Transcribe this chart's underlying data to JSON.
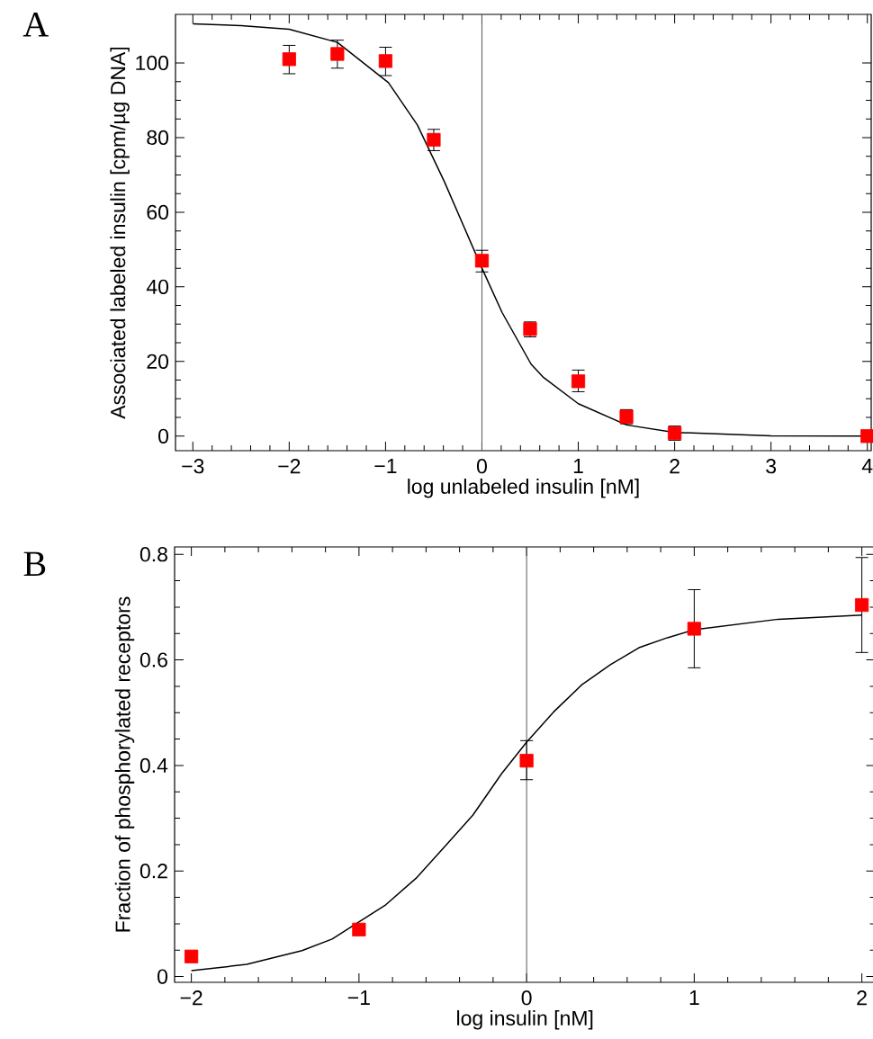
{
  "chart_data": [
    {
      "type": "scatter",
      "annotations": [
        "A"
      ],
      "xlabel": "log unlabeled insulin [nM]",
      "ylabel": "Associated labeled insulin [cpm/µg DNA]",
      "xlim": [
        -3.18,
        4.04
      ],
      "ylim": [
        -3.9,
        113
      ],
      "xticks": [
        {
          "value": -3,
          "label": "−3"
        },
        {
          "value": -2,
          "label": "−2"
        },
        {
          "value": -1,
          "label": "−1"
        },
        0,
        1,
        2,
        3,
        4
      ],
      "yticks": [
        0,
        20,
        40,
        60,
        80,
        100
      ],
      "ref_lines": [
        {
          "axis": "x",
          "value": 0,
          "color": "#555555"
        }
      ],
      "series": [
        {
          "type": "line",
          "color": "#000000",
          "marker": "none",
          "x": [
            -3,
            -2.5,
            -2,
            -1.5,
            -0.97,
            -0.67,
            -0.39,
            0,
            0.21,
            0.51,
            0.64,
            1,
            1.5,
            2,
            3,
            4
          ],
          "values": [
            110.5,
            110,
            109,
            105.5,
            94.7,
            83.4,
            68.2,
            45,
            33.1,
            19.3,
            15.7,
            8.7,
            3,
            1,
            0.1,
            0
          ]
        },
        {
          "color": "#ff0000",
          "marker": "square",
          "x": [
            -2,
            -1.5,
            -1,
            -0.5,
            0,
            0.5,
            1,
            1.5,
            2,
            4
          ],
          "values": [
            101,
            102.4,
            100.5,
            79.4,
            47,
            28.7,
            14.7,
            5.2,
            0.8,
            0
          ],
          "errors": [
            [
              97.1,
              104.7
            ],
            [
              98.6,
              106.1
            ],
            [
              96.6,
              104.2
            ],
            [
              76.5,
              82.2
            ],
            [
              44,
              49.8
            ],
            [
              26.6,
              30.6
            ],
            [
              11.9,
              17.7
            ],
            [
              3.3,
              7.1
            ],
            [
              -1.1,
              2.7
            ],
            null
          ]
        }
      ]
    },
    {
      "type": "scatter",
      "annotations": [
        "B"
      ],
      "xlabel": "log insulin [nM]",
      "ylabel": "Fraction of phosphorylated receptors",
      "xlim": [
        -2.1,
        2.08
      ],
      "ylim": [
        -0.011,
        0.814
      ],
      "xticks": [
        {
          "value": -2,
          "label": "−2"
        },
        {
          "value": -1,
          "label": "−1"
        },
        0,
        1,
        2
      ],
      "yticks": [
        0,
        0.2,
        0.4,
        0.6,
        0.8
      ],
      "ref_lines": [
        {
          "axis": "x",
          "value": 0,
          "color": "#555555"
        }
      ],
      "series": [
        {
          "type": "line",
          "color": "#000000",
          "marker": "none",
          "x": [
            -2,
            -1.67,
            -1.34,
            -1.16,
            -0.84,
            -0.66,
            -0.5,
            -0.32,
            -0.15,
            0,
            0.16,
            0.33,
            0.5,
            0.67,
            0.84,
            1,
            1.5,
            2
          ],
          "values": [
            0.011,
            0.023,
            0.049,
            0.071,
            0.136,
            0.186,
            0.242,
            0.306,
            0.384,
            0.444,
            0.501,
            0.553,
            0.591,
            0.623,
            0.642,
            0.657,
            0.677,
            0.685
          ]
        },
        {
          "color": "#ff0000",
          "marker": "square",
          "x": [
            -2,
            -1,
            0,
            1,
            2
          ],
          "values": [
            0.038,
            0.089,
            0.409,
            0.659,
            0.704
          ],
          "errors": [
            null,
            null,
            [
              0.373,
              0.447
            ],
            [
              0.585,
              0.733
            ],
            [
              0.614,
              0.794
            ]
          ]
        }
      ]
    }
  ]
}
